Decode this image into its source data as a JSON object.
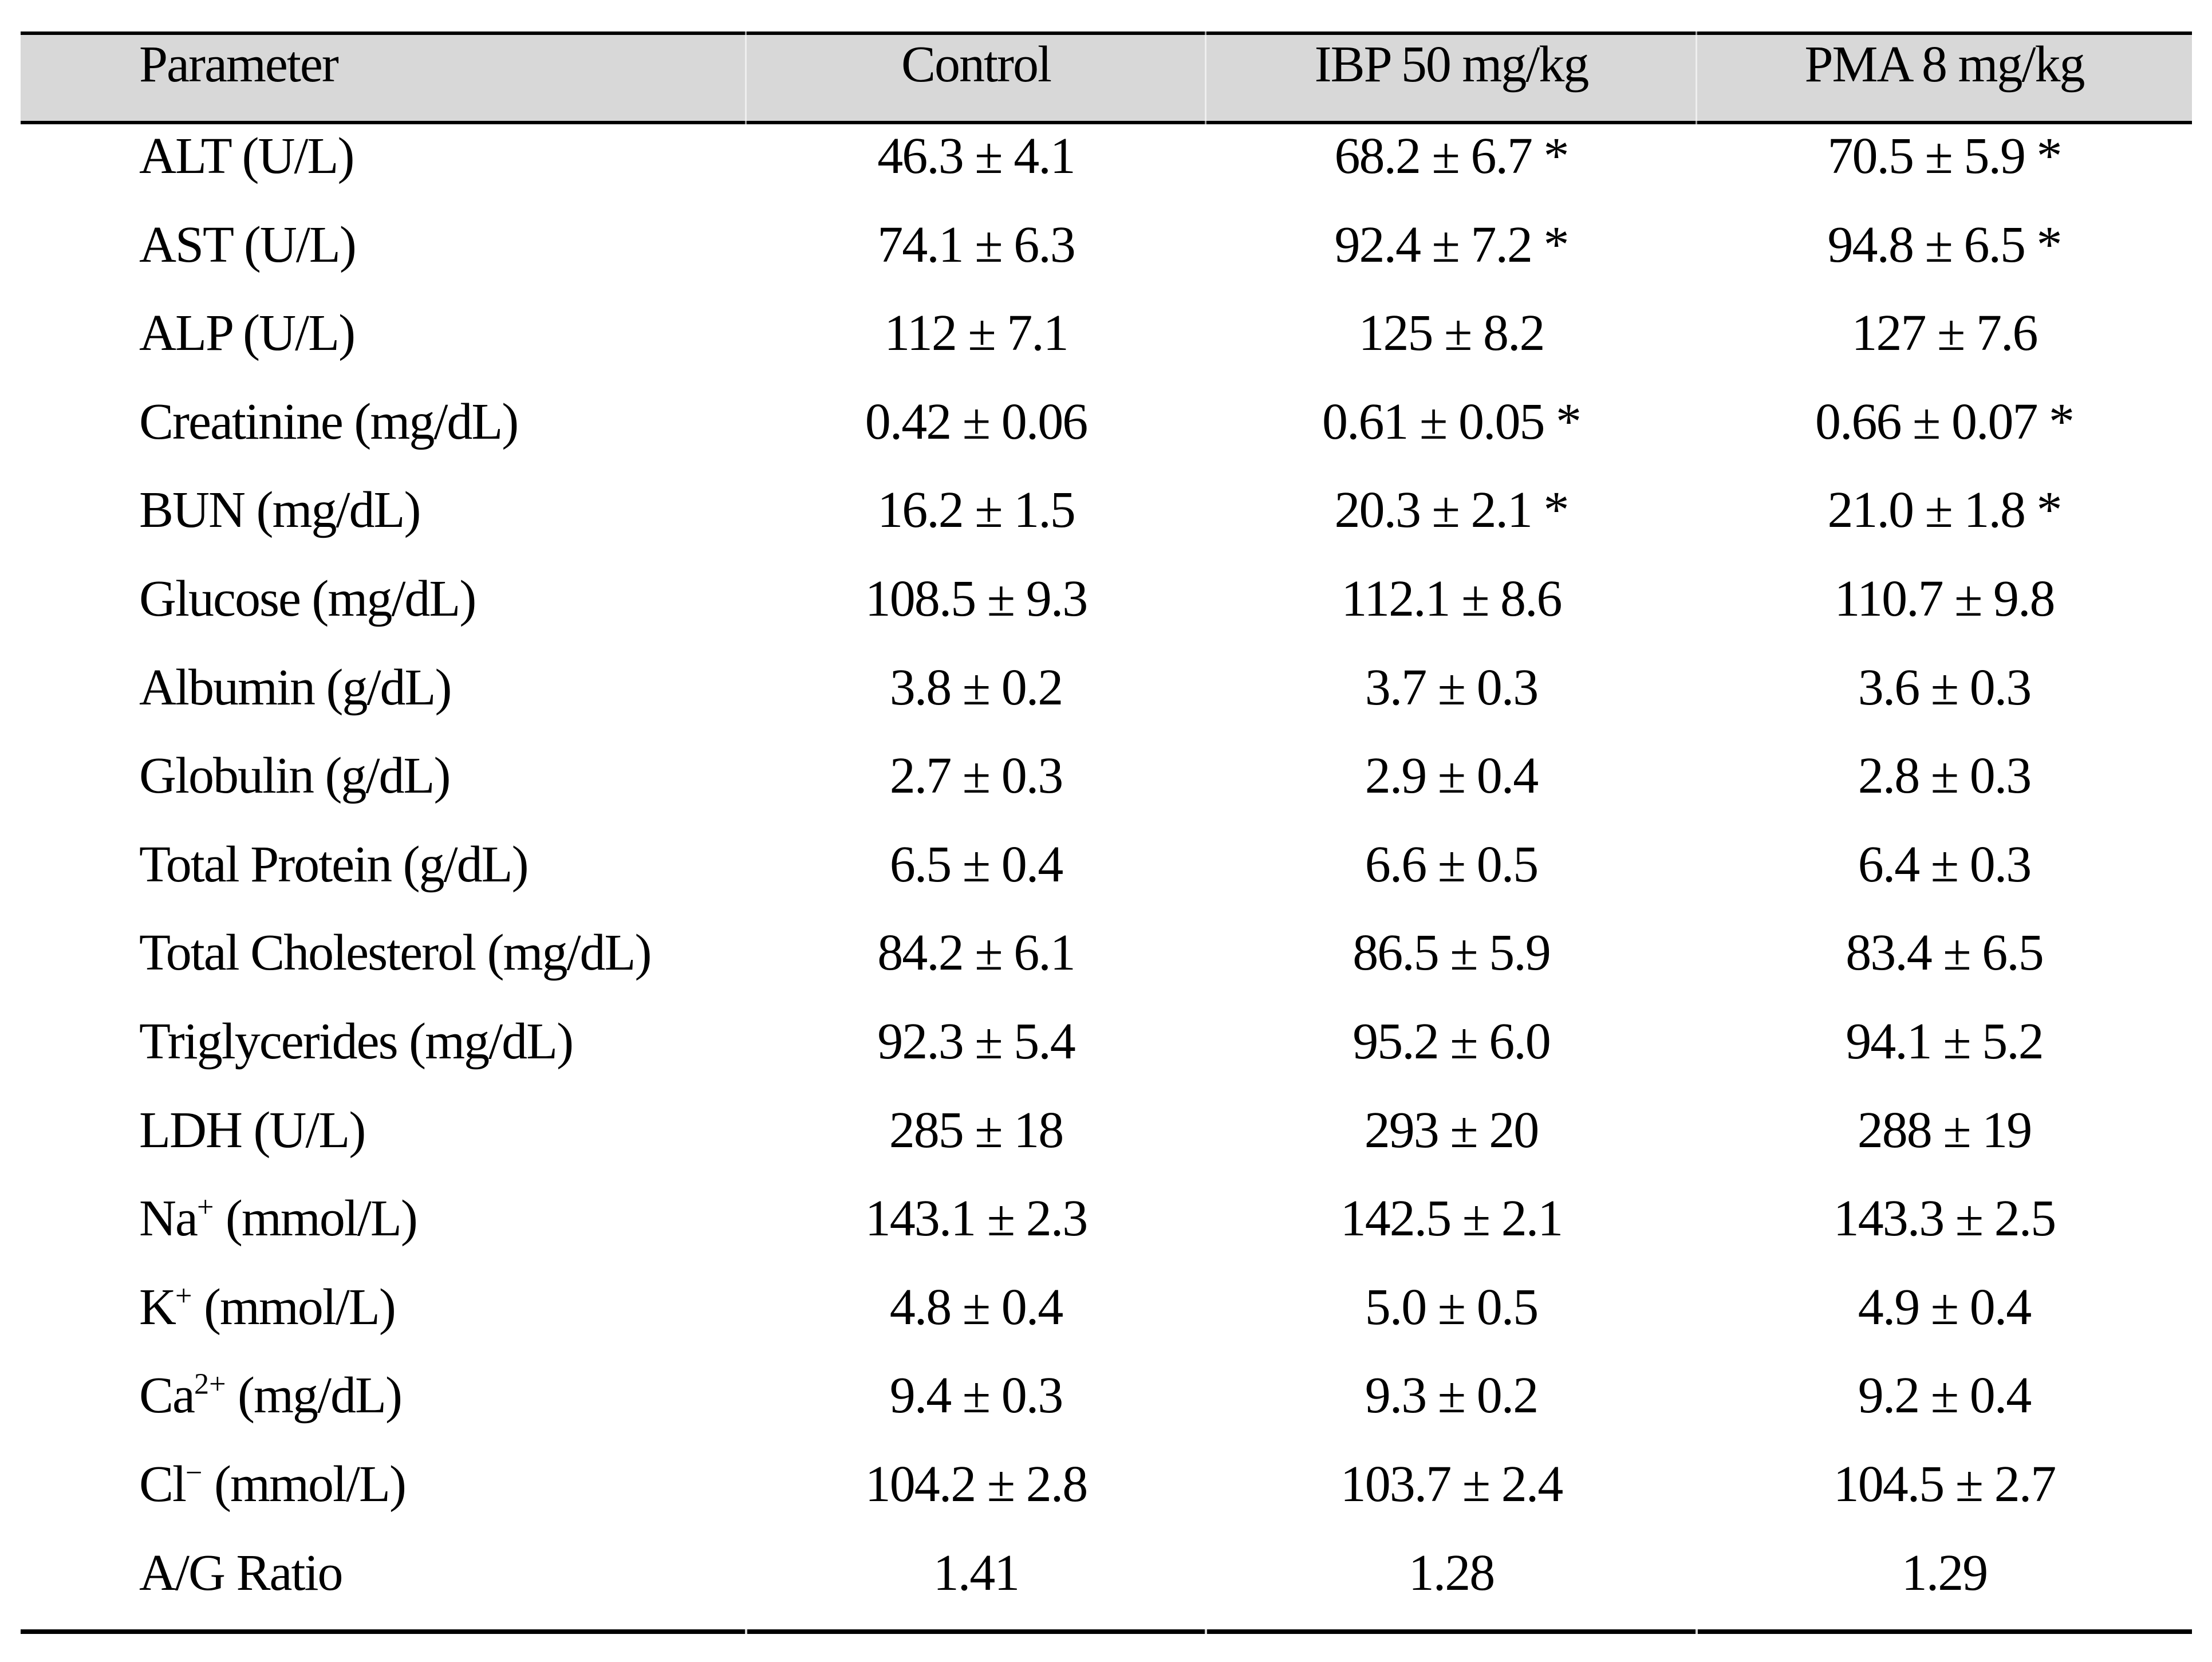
{
  "table": {
    "style": {
      "header_bg": "#d8d8d8",
      "border_color": "#000000",
      "text_color": "#000000",
      "page_bg": "#ffffff"
    },
    "header": {
      "columns": [
        "Parameter",
        "Control",
        "IBP 50 mg/kg",
        "PMA 8 mg/kg"
      ]
    },
    "rows": [
      {
        "param": {
          "pre": "ALT (U/L)",
          "sup": "",
          "post": ""
        },
        "values": [
          "46.3 ± 4.1",
          "68.2 ± 6.7 *",
          "70.5 ± 5.9 *"
        ]
      },
      {
        "param": {
          "pre": "AST (U/L)",
          "sup": "",
          "post": ""
        },
        "values": [
          "74.1 ± 6.3",
          "92.4 ± 7.2 *",
          "94.8 ± 6.5 *"
        ]
      },
      {
        "param": {
          "pre": "ALP (U/L)",
          "sup": "",
          "post": ""
        },
        "values": [
          "112 ± 7.1",
          "125 ± 8.2",
          "127 ± 7.6"
        ]
      },
      {
        "param": {
          "pre": "Creatinine (mg/dL)",
          "sup": "",
          "post": ""
        },
        "values": [
          "0.42 ± 0.06",
          "0.61 ± 0.05 *",
          "0.66 ± 0.07 *"
        ]
      },
      {
        "param": {
          "pre": "BUN (mg/dL)",
          "sup": "",
          "post": ""
        },
        "values": [
          "16.2 ± 1.5",
          "20.3 ± 2.1 *",
          "21.0 ± 1.8 *"
        ]
      },
      {
        "param": {
          "pre": "Glucose (mg/dL)",
          "sup": "",
          "post": ""
        },
        "values": [
          "108.5 ± 9.3",
          "112.1 ± 8.6",
          "110.7 ± 9.8"
        ]
      },
      {
        "param": {
          "pre": "Albumin (g/dL)",
          "sup": "",
          "post": ""
        },
        "values": [
          "3.8 ± 0.2",
          "3.7 ± 0.3",
          "3.6 ± 0.3"
        ]
      },
      {
        "param": {
          "pre": "Globulin (g/dL)",
          "sup": "",
          "post": ""
        },
        "values": [
          "2.7 ± 0.3",
          "2.9 ± 0.4",
          "2.8 ± 0.3"
        ]
      },
      {
        "param": {
          "pre": "Total Protein (g/dL)",
          "sup": "",
          "post": ""
        },
        "values": [
          "6.5 ± 0.4",
          "6.6 ± 0.5",
          "6.4 ± 0.3"
        ]
      },
      {
        "param": {
          "pre": "Total Cholesterol (mg/dL)",
          "sup": "",
          "post": ""
        },
        "values": [
          "84.2 ± 6.1",
          "86.5 ± 5.9",
          "83.4 ± 6.5"
        ]
      },
      {
        "param": {
          "pre": "Triglycerides (mg/dL)",
          "sup": "",
          "post": ""
        },
        "values": [
          "92.3 ± 5.4",
          "95.2 ± 6.0",
          "94.1 ± 5.2"
        ]
      },
      {
        "param": {
          "pre": "LDH (U/L)",
          "sup": "",
          "post": ""
        },
        "values": [
          "285 ± 18",
          "293 ± 20",
          "288 ± 19"
        ]
      },
      {
        "param": {
          "pre": "Na",
          "sup": "+",
          "post": " (mmol/L)"
        },
        "values": [
          "143.1 ± 2.3",
          "142.5 ± 2.1",
          "143.3 ± 2.5"
        ]
      },
      {
        "param": {
          "pre": "K",
          "sup": "+",
          "post": " (mmol/L)"
        },
        "values": [
          "4.8 ± 0.4",
          "5.0 ± 0.5",
          "4.9 ± 0.4"
        ]
      },
      {
        "param": {
          "pre": "Ca",
          "sup": "2+",
          "post": " (mg/dL)"
        },
        "values": [
          "9.4 ± 0.3",
          "9.3 ± 0.2",
          "9.2 ± 0.4"
        ]
      },
      {
        "param": {
          "pre": "Cl",
          "sup": "−",
          "post": " (mmol/L)"
        },
        "values": [
          "104.2 ± 2.8",
          "103.7 ± 2.4",
          "104.5 ± 2.7"
        ]
      },
      {
        "param": {
          "pre": "A/G Ratio",
          "sup": "",
          "post": ""
        },
        "values": [
          "1.41",
          "1.28",
          "1.29"
        ]
      }
    ]
  }
}
